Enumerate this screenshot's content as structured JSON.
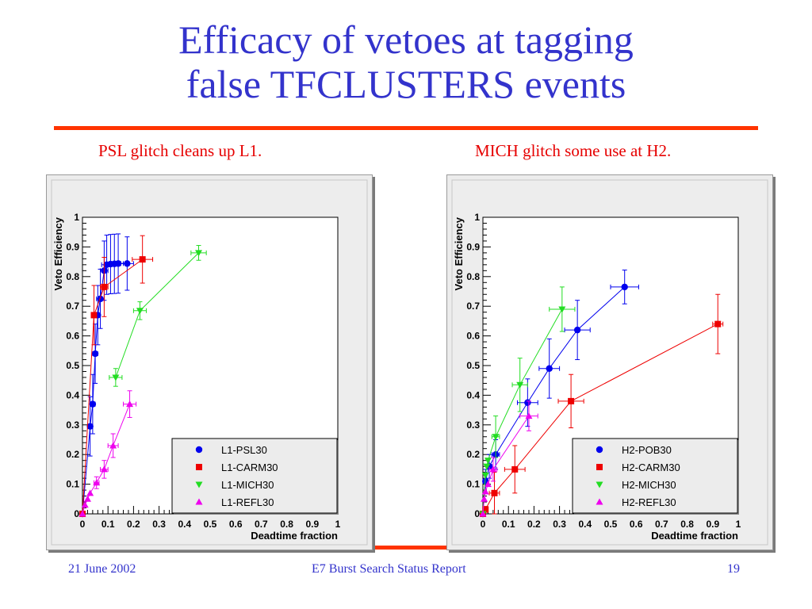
{
  "slide": {
    "title_line1": "Efficacy of vetoes at tagging",
    "title_line2": "false TFCLUSTERS events",
    "subtitle_left": "PSL glitch cleans up L1.",
    "subtitle_right": "MICH glitch some use at H2.",
    "footer_date": "21 June 2002",
    "footer_center": "E7 Burst Search Status Report",
    "footer_page": "19",
    "colors": {
      "title": "#3333cc",
      "accent_rule": "#ff3300",
      "subtitle": "#e60000"
    }
  },
  "chart_data": [
    {
      "type": "scatter",
      "title": "",
      "xlabel": "Deadtime fraction",
      "ylabel": "Veto Efficiency",
      "xlim": [
        0,
        1
      ],
      "ylim": [
        0,
        1
      ],
      "xticks": [
        "0",
        "0.1",
        "0.2",
        "0.3",
        "0.4",
        "0.5",
        "0.6",
        "0.7",
        "0.8",
        "0.9",
        "1"
      ],
      "yticks": [
        "0",
        "0.1",
        "0.2",
        "0.3",
        "0.4",
        "0.5",
        "0.6",
        "0.7",
        "0.8",
        "0.9",
        "1"
      ],
      "legend_position": "bottom-right",
      "series": [
        {
          "name": "L1-PSL30",
          "color": "#0000ee",
          "marker": "circle",
          "points": [
            {
              "x": 0.0,
              "y": 0.0
            },
            {
              "x": 0.03,
              "y": 0.295,
              "ex": 0.01,
              "ey": 0.1
            },
            {
              "x": 0.04,
              "y": 0.37,
              "ex": 0.01,
              "ey": 0.1
            },
            {
              "x": 0.05,
              "y": 0.54,
              "ex": 0.01,
              "ey": 0.1
            },
            {
              "x": 0.06,
              "y": 0.67,
              "ex": 0.01,
              "ey": 0.1
            },
            {
              "x": 0.07,
              "y": 0.725,
              "ex": 0.015,
              "ey": 0.1
            },
            {
              "x": 0.085,
              "y": 0.82,
              "ex": 0.015,
              "ey": 0.1
            },
            {
              "x": 0.095,
              "y": 0.84,
              "ex": 0.02,
              "ey": 0.1
            },
            {
              "x": 0.11,
              "y": 0.842,
              "ex": 0.02,
              "ey": 0.1
            },
            {
              "x": 0.125,
              "y": 0.843,
              "ex": 0.02,
              "ey": 0.1
            },
            {
              "x": 0.14,
              "y": 0.844,
              "ex": 0.02,
              "ey": 0.1
            },
            {
              "x": 0.175,
              "y": 0.844,
              "ex": 0.025,
              "ey": 0.09
            }
          ]
        },
        {
          "name": "L1-CARM30",
          "color": "#ee0000",
          "marker": "square",
          "points": [
            {
              "x": 0.0,
              "y": 0.0
            },
            {
              "x": 0.045,
              "y": 0.67,
              "ex": 0.01,
              "ey": 0.1
            },
            {
              "x": 0.085,
              "y": 0.765,
              "ex": 0.015,
              "ey": 0.1
            },
            {
              "x": 0.235,
              "y": 0.858,
              "ex": 0.04,
              "ey": 0.08
            }
          ]
        },
        {
          "name": "L1-MICH30",
          "color": "#22dd22",
          "marker": "triangle-down",
          "points": [
            {
              "x": 0.13,
              "y": 0.46,
              "ex": 0.025,
              "ey": 0.03
            },
            {
              "x": 0.225,
              "y": 0.685,
              "ex": 0.025,
              "ey": 0.03
            },
            {
              "x": 0.455,
              "y": 0.88,
              "ex": 0.03,
              "ey": 0.025
            }
          ]
        },
        {
          "name": "L1-REFL30",
          "color": "#ee00ee",
          "marker": "triangle-up",
          "points": [
            {
              "x": 0.0,
              "y": 0.0
            },
            {
              "x": 0.01,
              "y": 0.03
            },
            {
              "x": 0.02,
              "y": 0.05
            },
            {
              "x": 0.03,
              "y": 0.07
            },
            {
              "x": 0.055,
              "y": 0.105,
              "ex": 0.01,
              "ey": 0.02
            },
            {
              "x": 0.085,
              "y": 0.15,
              "ex": 0.015,
              "ey": 0.03
            },
            {
              "x": 0.12,
              "y": 0.23,
              "ex": 0.02,
              "ey": 0.04
            },
            {
              "x": 0.185,
              "y": 0.37,
              "ex": 0.025,
              "ey": 0.045
            }
          ]
        }
      ]
    },
    {
      "type": "scatter",
      "title": "",
      "xlabel": "Deadtime fraction",
      "ylabel": "Veto Efficiency",
      "xlim": [
        0,
        1
      ],
      "ylim": [
        0,
        1
      ],
      "xticks": [
        "0",
        "0.1",
        "0.2",
        "0.3",
        "0.4",
        "0.5",
        "0.6",
        "0.7",
        "0.8",
        "0.9",
        "1"
      ],
      "yticks": [
        "0",
        "0.1",
        "0.2",
        "0.3",
        "0.4",
        "0.5",
        "0.6",
        "0.7",
        "0.8",
        "0.9",
        "1"
      ],
      "legend_position": "bottom-right",
      "series": [
        {
          "name": "H2-POB30",
          "color": "#0000ee",
          "marker": "circle",
          "points": [
            {
              "x": 0.0,
              "y": 0.0
            },
            {
              "x": 0.01,
              "y": 0.11,
              "ex": 0.01,
              "ey": 0.04
            },
            {
              "x": 0.025,
              "y": 0.16,
              "ex": 0.01,
              "ey": 0.04
            },
            {
              "x": 0.05,
              "y": 0.2,
              "ex": 0.015,
              "ey": 0.05
            },
            {
              "x": 0.175,
              "y": 0.375,
              "ex": 0.04,
              "ey": 0.08
            },
            {
              "x": 0.26,
              "y": 0.49,
              "ex": 0.04,
              "ey": 0.1
            },
            {
              "x": 0.37,
              "y": 0.62,
              "ex": 0.05,
              "ey": 0.1
            },
            {
              "x": 0.555,
              "y": 0.765,
              "ex": 0.055,
              "ey": 0.057
            }
          ]
        },
        {
          "name": "H2-CARM30",
          "color": "#ee0000",
          "marker": "square",
          "points": [
            {
              "x": 0.0,
              "y": 0.0
            },
            {
              "x": 0.01,
              "y": 0.015,
              "ex": 0.01,
              "ey": 0.01
            },
            {
              "x": 0.045,
              "y": 0.07,
              "ex": 0.02,
              "ey": 0.07
            },
            {
              "x": 0.125,
              "y": 0.15,
              "ex": 0.04,
              "ey": 0.08
            },
            {
              "x": 0.345,
              "y": 0.38,
              "ex": 0.05,
              "ey": 0.09
            },
            {
              "x": 0.92,
              "y": 0.64,
              "ex": 0.02,
              "ey": 0.1
            }
          ]
        },
        {
          "name": "H2-MICH30",
          "color": "#22dd22",
          "marker": "triangle-down",
          "points": [
            {
              "x": 0.0,
              "y": 0.0
            },
            {
              "x": 0.01,
              "y": 0.13
            },
            {
              "x": 0.015,
              "y": 0.16
            },
            {
              "x": 0.02,
              "y": 0.18
            },
            {
              "x": 0.05,
              "y": 0.26,
              "ex": 0.015,
              "ey": 0.07
            },
            {
              "x": 0.145,
              "y": 0.435,
              "ex": 0.03,
              "ey": 0.09
            },
            {
              "x": 0.31,
              "y": 0.69,
              "ex": 0.05,
              "ey": 0.075
            }
          ]
        },
        {
          "name": "H2-REFL30",
          "color": "#ee00ee",
          "marker": "triangle-up",
          "points": [
            {
              "x": 0.0,
              "y": 0.0
            },
            {
              "x": 0.005,
              "y": 0.05
            },
            {
              "x": 0.01,
              "y": 0.075
            },
            {
              "x": 0.02,
              "y": 0.1
            },
            {
              "x": 0.04,
              "y": 0.15,
              "ex": 0.015,
              "ey": 0.04
            },
            {
              "x": 0.18,
              "y": 0.33,
              "ex": 0.035,
              "ey": 0.05
            }
          ]
        }
      ]
    }
  ]
}
